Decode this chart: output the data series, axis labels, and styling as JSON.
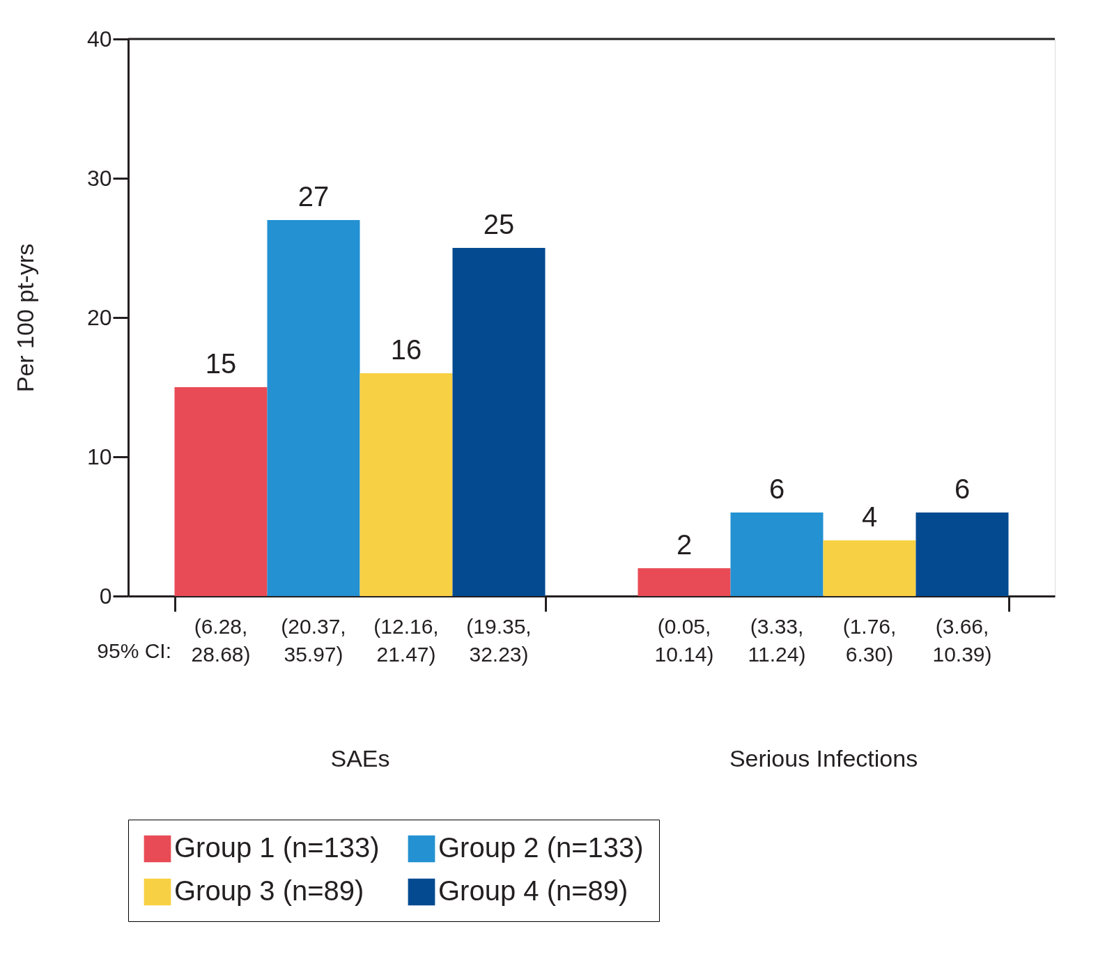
{
  "chart_data": {
    "type": "bar",
    "ylabel": "Per 100 pt-yrs",
    "categories": [
      "SAEs",
      "Serious Infections"
    ],
    "series": [
      {
        "name": "Group 1 (n=133)",
        "color": "#e84b55",
        "values": [
          15,
          2
        ]
      },
      {
        "name": "Group 2 (n=133)",
        "color": "#2391d2",
        "values": [
          27,
          6
        ]
      },
      {
        "name": "Group 3 (n=89)",
        "color": "#f8d043",
        "values": [
          16,
          4
        ]
      },
      {
        "name": "Group 4 (n=89)",
        "color": "#034a91",
        "values": [
          25,
          6
        ]
      }
    ],
    "ylim": [
      0,
      40
    ],
    "yticks": [
      0,
      10,
      20,
      30,
      40
    ],
    "data_labels": true,
    "grid": false,
    "legend": "bottom",
    "annotations": [
      "95% CI:",
      "(6.28,\n28.68)",
      "(20.37,\n35.97)",
      "(12.16,\n21.47)",
      "(19.35,\n32.23)",
      "(0.05,\n10.14)",
      "(3.33,\n11.24)",
      "(1.76,\n6.30)",
      "(3.66,\n10.39)"
    ]
  }
}
